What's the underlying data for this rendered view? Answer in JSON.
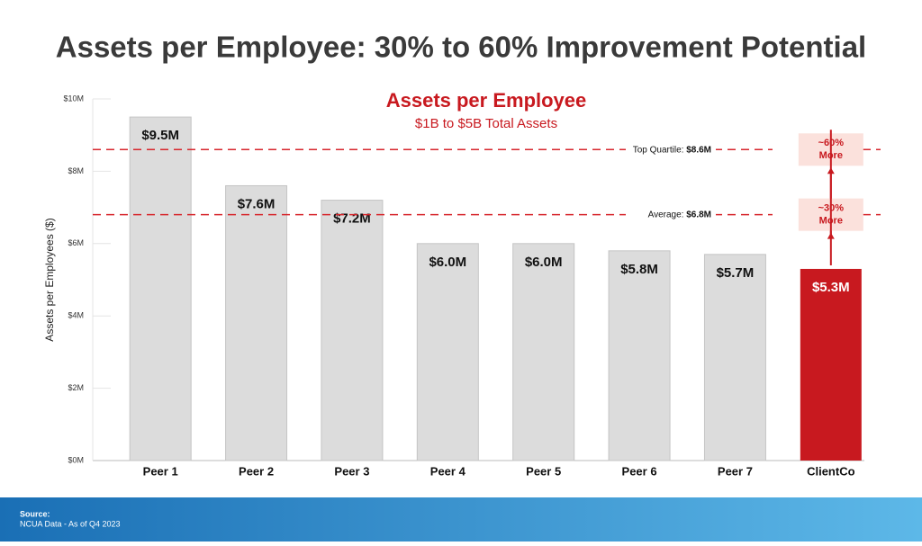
{
  "title": "Assets per Employee: 30% to 60% Improvement Potential",
  "chart_data": {
    "type": "bar",
    "title": "Assets per Employee",
    "subtitle": "$1B to $5B Total Assets",
    "y_label": "Assets per Employees ($)",
    "categories": [
      "Peer 1",
      "Peer 2",
      "Peer 3",
      "Peer 4",
      "Peer 5",
      "Peer 6",
      "Peer 7",
      "ClientCo"
    ],
    "values": [
      9.5,
      7.6,
      7.2,
      6.0,
      6.0,
      5.8,
      5.7,
      5.3
    ],
    "value_labels": [
      "$9.5M",
      "$7.6M",
      "$7.2M",
      "$6.0M",
      "$6.0M",
      "$5.8M",
      "$5.7M",
      "$5.3M"
    ],
    "colors": [
      "#dcdcdc",
      "#dcdcdc",
      "#dcdcdc",
      "#dcdcdc",
      "#dcdcdc",
      "#dcdcdc",
      "#dcdcdc",
      "#c8191f"
    ],
    "ylim": [
      0,
      10
    ],
    "yticks": [
      {
        "value": 0,
        "label": "$0M"
      },
      {
        "value": 2,
        "label": "$2M"
      },
      {
        "value": 4,
        "label": "$4M"
      },
      {
        "value": 6,
        "label": "$6M"
      },
      {
        "value": 8,
        "label": "$8M"
      },
      {
        "value": 10,
        "label": "$10M"
      }
    ],
    "reference_lines": [
      {
        "label": "Top Quartile:",
        "value": 8.6,
        "value_label": "$8.6M",
        "annotation": [
          "~60%",
          "More"
        ]
      },
      {
        "label": "Average:",
        "value": 6.8,
        "value_label": "$6.8M",
        "annotation": [
          "~30%",
          "More"
        ]
      }
    ]
  },
  "footer": {
    "heading": "Source:",
    "text": "NCUA Data - As of Q4 2023"
  }
}
